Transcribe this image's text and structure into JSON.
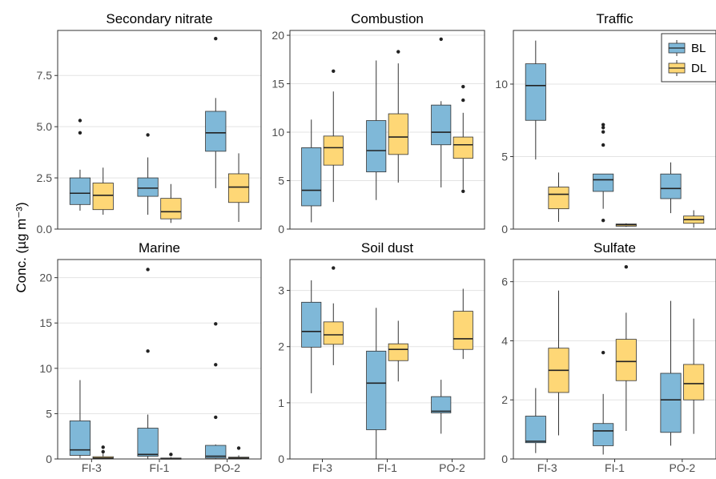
{
  "figure": {
    "ylabel": "Conc. (µg m⁻³)",
    "categories": [
      "FI-3",
      "FI-1",
      "PO-2"
    ],
    "legend": {
      "placement": "top-right",
      "entries": [
        {
          "name": "BL",
          "color": "#7fb8d8"
        },
        {
          "name": "DL",
          "color": "#fed776"
        }
      ]
    }
  },
  "chart_data": [
    {
      "type": "box",
      "title": "Secondary nitrate",
      "ylim": [
        0,
        9.7
      ],
      "yticks": [
        0.0,
        2.5,
        5.0,
        7.5
      ],
      "tick_decimals": 1,
      "categories": [
        "FI-3",
        "FI-1",
        "PO-2"
      ],
      "series": [
        {
          "name": "BL",
          "boxes": [
            {
              "min": 0.9,
              "q1": 1.2,
              "median": 1.75,
              "q3": 2.5,
              "max": 2.9,
              "outliers": [
                4.7,
                5.3
              ]
            },
            {
              "min": 0.7,
              "q1": 1.6,
              "median": 2.0,
              "q3": 2.5,
              "max": 3.5,
              "outliers": [
                4.6
              ]
            },
            {
              "min": 2.0,
              "q1": 3.8,
              "median": 4.7,
              "q3": 5.75,
              "max": 6.4,
              "outliers": [
                9.3
              ]
            }
          ]
        },
        {
          "name": "DL",
          "boxes": [
            {
              "min": 0.7,
              "q1": 0.95,
              "median": 1.65,
              "q3": 2.25,
              "max": 3.0,
              "outliers": []
            },
            {
              "min": 0.3,
              "q1": 0.5,
              "median": 0.85,
              "q3": 1.5,
              "max": 2.2,
              "outliers": []
            },
            {
              "min": 0.35,
              "q1": 1.3,
              "median": 2.05,
              "q3": 2.7,
              "max": 3.7,
              "outliers": []
            }
          ]
        }
      ]
    },
    {
      "type": "box",
      "title": "Combustion",
      "ylim": [
        0,
        20.5
      ],
      "yticks": [
        0,
        5,
        10,
        15,
        20
      ],
      "tick_decimals": 0,
      "categories": [
        "FI-3",
        "FI-1",
        "PO-2"
      ],
      "series": [
        {
          "name": "BL",
          "boxes": [
            {
              "min": 0.7,
              "q1": 2.4,
              "median": 4.0,
              "q3": 8.4,
              "max": 11.3,
              "outliers": []
            },
            {
              "min": 3.0,
              "q1": 5.9,
              "median": 8.1,
              "q3": 11.2,
              "max": 17.4,
              "outliers": []
            },
            {
              "min": 4.3,
              "q1": 8.7,
              "median": 10.0,
              "q3": 12.8,
              "max": 13.2,
              "outliers": [
                19.6
              ]
            }
          ]
        },
        {
          "name": "DL",
          "boxes": [
            {
              "min": 2.8,
              "q1": 6.6,
              "median": 8.4,
              "q3": 9.6,
              "max": 14.2,
              "outliers": [
                16.3
              ]
            },
            {
              "min": 4.8,
              "q1": 7.7,
              "median": 9.5,
              "q3": 11.9,
              "max": 17.1,
              "outliers": [
                18.3
              ]
            },
            {
              "min": 4.1,
              "q1": 7.3,
              "median": 8.7,
              "q3": 9.5,
              "max": 12.0,
              "outliers": [
                3.9,
                13.3,
                14.7
              ]
            }
          ]
        }
      ]
    },
    {
      "type": "box",
      "title": "Traffic",
      "ylim": [
        0,
        13.7
      ],
      "yticks": [
        0,
        5,
        10
      ],
      "tick_decimals": 0,
      "categories": [
        "FI-3",
        "FI-1",
        "PO-2"
      ],
      "series": [
        {
          "name": "BL",
          "boxes": [
            {
              "min": 4.8,
              "q1": 7.5,
              "median": 9.9,
              "q3": 11.4,
              "max": 13.0,
              "outliers": []
            },
            {
              "min": 1.4,
              "q1": 2.6,
              "median": 3.4,
              "q3": 3.8,
              "max": 3.8,
              "outliers": [
                0.6,
                5.8,
                6.7,
                7.0,
                7.2
              ]
            },
            {
              "min": 1.1,
              "q1": 2.1,
              "median": 2.8,
              "q3": 3.8,
              "max": 4.6,
              "outliers": []
            }
          ]
        },
        {
          "name": "DL",
          "boxes": [
            {
              "min": 0.5,
              "q1": 1.4,
              "median": 2.4,
              "q3": 2.9,
              "max": 3.9,
              "outliers": []
            },
            {
              "min": 0.15,
              "q1": 0.2,
              "median": 0.3,
              "q3": 0.35,
              "max": 0.4,
              "outliers": []
            },
            {
              "min": 0.1,
              "q1": 0.4,
              "median": 0.65,
              "q3": 0.9,
              "max": 1.3,
              "outliers": []
            }
          ]
        }
      ]
    },
    {
      "type": "box",
      "title": "Marine",
      "ylim": [
        0,
        22
      ],
      "yticks": [
        0,
        5,
        10,
        15,
        20
      ],
      "tick_decimals": 0,
      "categories": [
        "FI-3",
        "FI-1",
        "PO-2"
      ],
      "series": [
        {
          "name": "BL",
          "boxes": [
            {
              "min": 0.1,
              "q1": 0.4,
              "median": 1.0,
              "q3": 4.2,
              "max": 8.7,
              "outliers": []
            },
            {
              "min": 0.05,
              "q1": 0.3,
              "median": 0.5,
              "q3": 3.4,
              "max": 4.9,
              "outliers": [
                11.9,
                20.9
              ]
            },
            {
              "min": 0.05,
              "q1": 0.1,
              "median": 0.3,
              "q3": 1.5,
              "max": 1.6,
              "outliers": [
                4.6,
                10.4,
                14.9
              ]
            }
          ]
        },
        {
          "name": "DL",
          "boxes": [
            {
              "min": 0.0,
              "q1": 0.05,
              "median": 0.1,
              "q3": 0.25,
              "max": 0.6,
              "outliers": [
                0.8,
                1.3
              ]
            },
            {
              "min": 0.0,
              "q1": 0.02,
              "median": 0.05,
              "q3": 0.1,
              "max": 0.2,
              "outliers": [
                0.5
              ]
            },
            {
              "min": 0.0,
              "q1": 0.05,
              "median": 0.1,
              "q3": 0.2,
              "max": 0.4,
              "outliers": [
                1.2
              ]
            }
          ]
        }
      ]
    },
    {
      "type": "box",
      "title": "Soil dust",
      "ylim": [
        0,
        3.55
      ],
      "yticks": [
        0,
        1,
        2,
        3
      ],
      "tick_decimals": 0,
      "categories": [
        "FI-3",
        "FI-1",
        "PO-2"
      ],
      "series": [
        {
          "name": "BL",
          "boxes": [
            {
              "min": 1.17,
              "q1": 1.99,
              "median": 2.27,
              "q3": 2.79,
              "max": 3.18,
              "outliers": []
            },
            {
              "min": 0.0,
              "q1": 0.52,
              "median": 1.35,
              "q3": 1.92,
              "max": 2.69,
              "outliers": []
            },
            {
              "min": 0.45,
              "q1": 0.82,
              "median": 0.85,
              "q3": 1.11,
              "max": 1.41,
              "outliers": []
            }
          ]
        },
        {
          "name": "DL",
          "boxes": [
            {
              "min": 1.67,
              "q1": 2.04,
              "median": 2.21,
              "q3": 2.44,
              "max": 2.77,
              "outliers": [
                3.4
              ]
            },
            {
              "min": 1.38,
              "q1": 1.75,
              "median": 1.95,
              "q3": 2.05,
              "max": 2.46,
              "outliers": []
            },
            {
              "min": 1.78,
              "q1": 1.95,
              "median": 2.14,
              "q3": 2.63,
              "max": 3.03,
              "outliers": []
            }
          ]
        }
      ]
    },
    {
      "type": "box",
      "title": "Sulfate",
      "ylim": [
        0,
        6.75
      ],
      "yticks": [
        0,
        2,
        4,
        6
      ],
      "tick_decimals": 0,
      "categories": [
        "FI-3",
        "FI-1",
        "PO-2"
      ],
      "series": [
        {
          "name": "BL",
          "boxes": [
            {
              "min": 0.2,
              "q1": 0.55,
              "median": 0.6,
              "q3": 1.45,
              "max": 2.4,
              "outliers": []
            },
            {
              "min": 0.15,
              "q1": 0.45,
              "median": 0.95,
              "q3": 1.2,
              "max": 2.2,
              "outliers": [
                3.6
              ]
            },
            {
              "min": 0.45,
              "q1": 0.9,
              "median": 2.0,
              "q3": 2.9,
              "max": 5.35,
              "outliers": []
            }
          ]
        },
        {
          "name": "DL",
          "boxes": [
            {
              "min": 0.8,
              "q1": 2.25,
              "median": 3.0,
              "q3": 3.75,
              "max": 5.7,
              "outliers": []
            },
            {
              "min": 0.95,
              "q1": 2.65,
              "median": 3.3,
              "q3": 4.05,
              "max": 4.95,
              "outliers": [
                6.5
              ]
            },
            {
              "min": 0.85,
              "q1": 2.0,
              "median": 2.55,
              "q3": 3.2,
              "max": 4.75,
              "outliers": []
            }
          ]
        }
      ]
    }
  ]
}
